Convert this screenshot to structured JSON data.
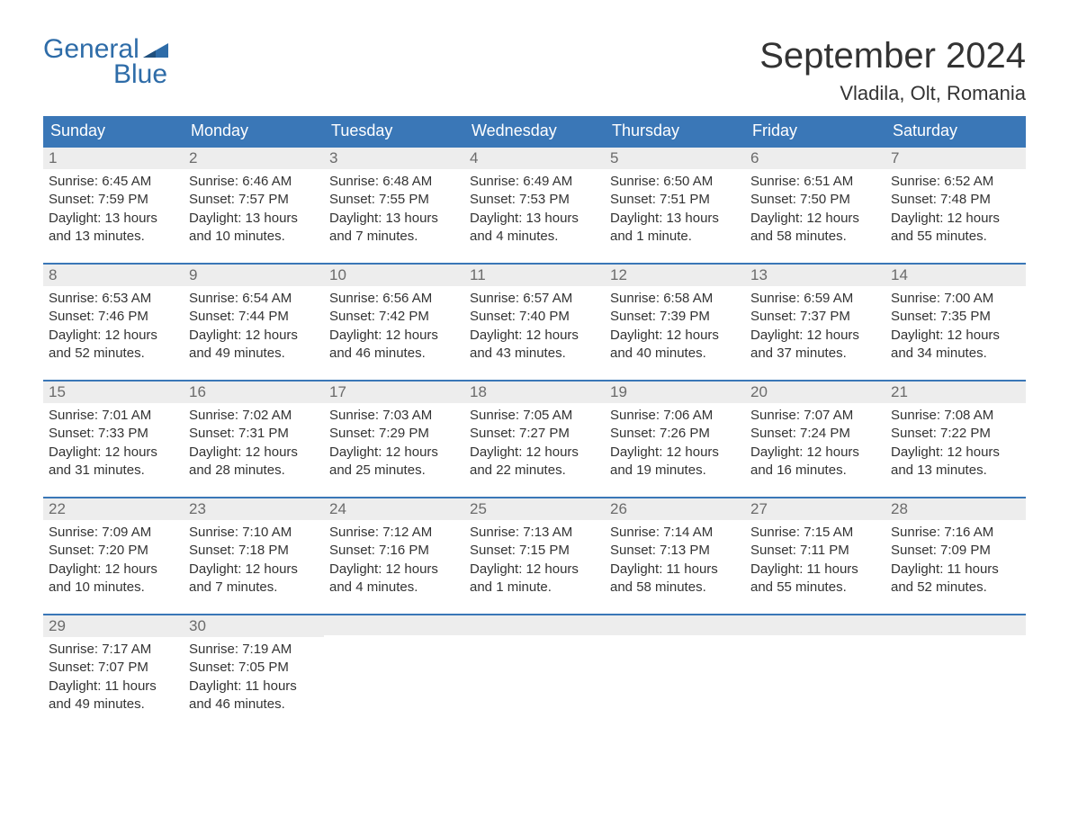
{
  "brand": {
    "name_top": "General",
    "name_bottom": "Blue",
    "brand_color": "#2e6ca8"
  },
  "title": "September 2024",
  "location": "Vladila, Olt, Romania",
  "colors": {
    "header_bg": "#3a77b7",
    "header_text": "#ffffff",
    "daynum_bg": "#ededed",
    "daynum_text": "#6b6b6b",
    "body_text": "#333333",
    "row_border": "#3a77b7",
    "page_bg": "#ffffff"
  },
  "fonts": {
    "month_title_size": 40,
    "location_size": 22,
    "weekday_size": 18,
    "daynum_size": 17,
    "body_size": 15,
    "logo_size": 30
  },
  "weekdays": [
    "Sunday",
    "Monday",
    "Tuesday",
    "Wednesday",
    "Thursday",
    "Friday",
    "Saturday"
  ],
  "weeks": [
    [
      {
        "num": "1",
        "sunrise": "Sunrise: 6:45 AM",
        "sunset": "Sunset: 7:59 PM",
        "daylight1": "Daylight: 13 hours",
        "daylight2": "and 13 minutes."
      },
      {
        "num": "2",
        "sunrise": "Sunrise: 6:46 AM",
        "sunset": "Sunset: 7:57 PM",
        "daylight1": "Daylight: 13 hours",
        "daylight2": "and 10 minutes."
      },
      {
        "num": "3",
        "sunrise": "Sunrise: 6:48 AM",
        "sunset": "Sunset: 7:55 PM",
        "daylight1": "Daylight: 13 hours",
        "daylight2": "and 7 minutes."
      },
      {
        "num": "4",
        "sunrise": "Sunrise: 6:49 AM",
        "sunset": "Sunset: 7:53 PM",
        "daylight1": "Daylight: 13 hours",
        "daylight2": "and 4 minutes."
      },
      {
        "num": "5",
        "sunrise": "Sunrise: 6:50 AM",
        "sunset": "Sunset: 7:51 PM",
        "daylight1": "Daylight: 13 hours",
        "daylight2": "and 1 minute."
      },
      {
        "num": "6",
        "sunrise": "Sunrise: 6:51 AM",
        "sunset": "Sunset: 7:50 PM",
        "daylight1": "Daylight: 12 hours",
        "daylight2": "and 58 minutes."
      },
      {
        "num": "7",
        "sunrise": "Sunrise: 6:52 AM",
        "sunset": "Sunset: 7:48 PM",
        "daylight1": "Daylight: 12 hours",
        "daylight2": "and 55 minutes."
      }
    ],
    [
      {
        "num": "8",
        "sunrise": "Sunrise: 6:53 AM",
        "sunset": "Sunset: 7:46 PM",
        "daylight1": "Daylight: 12 hours",
        "daylight2": "and 52 minutes."
      },
      {
        "num": "9",
        "sunrise": "Sunrise: 6:54 AM",
        "sunset": "Sunset: 7:44 PM",
        "daylight1": "Daylight: 12 hours",
        "daylight2": "and 49 minutes."
      },
      {
        "num": "10",
        "sunrise": "Sunrise: 6:56 AM",
        "sunset": "Sunset: 7:42 PM",
        "daylight1": "Daylight: 12 hours",
        "daylight2": "and 46 minutes."
      },
      {
        "num": "11",
        "sunrise": "Sunrise: 6:57 AM",
        "sunset": "Sunset: 7:40 PM",
        "daylight1": "Daylight: 12 hours",
        "daylight2": "and 43 minutes."
      },
      {
        "num": "12",
        "sunrise": "Sunrise: 6:58 AM",
        "sunset": "Sunset: 7:39 PM",
        "daylight1": "Daylight: 12 hours",
        "daylight2": "and 40 minutes."
      },
      {
        "num": "13",
        "sunrise": "Sunrise: 6:59 AM",
        "sunset": "Sunset: 7:37 PM",
        "daylight1": "Daylight: 12 hours",
        "daylight2": "and 37 minutes."
      },
      {
        "num": "14",
        "sunrise": "Sunrise: 7:00 AM",
        "sunset": "Sunset: 7:35 PM",
        "daylight1": "Daylight: 12 hours",
        "daylight2": "and 34 minutes."
      }
    ],
    [
      {
        "num": "15",
        "sunrise": "Sunrise: 7:01 AM",
        "sunset": "Sunset: 7:33 PM",
        "daylight1": "Daylight: 12 hours",
        "daylight2": "and 31 minutes."
      },
      {
        "num": "16",
        "sunrise": "Sunrise: 7:02 AM",
        "sunset": "Sunset: 7:31 PM",
        "daylight1": "Daylight: 12 hours",
        "daylight2": "and 28 minutes."
      },
      {
        "num": "17",
        "sunrise": "Sunrise: 7:03 AM",
        "sunset": "Sunset: 7:29 PM",
        "daylight1": "Daylight: 12 hours",
        "daylight2": "and 25 minutes."
      },
      {
        "num": "18",
        "sunrise": "Sunrise: 7:05 AM",
        "sunset": "Sunset: 7:27 PM",
        "daylight1": "Daylight: 12 hours",
        "daylight2": "and 22 minutes."
      },
      {
        "num": "19",
        "sunrise": "Sunrise: 7:06 AM",
        "sunset": "Sunset: 7:26 PM",
        "daylight1": "Daylight: 12 hours",
        "daylight2": "and 19 minutes."
      },
      {
        "num": "20",
        "sunrise": "Sunrise: 7:07 AM",
        "sunset": "Sunset: 7:24 PM",
        "daylight1": "Daylight: 12 hours",
        "daylight2": "and 16 minutes."
      },
      {
        "num": "21",
        "sunrise": "Sunrise: 7:08 AM",
        "sunset": "Sunset: 7:22 PM",
        "daylight1": "Daylight: 12 hours",
        "daylight2": "and 13 minutes."
      }
    ],
    [
      {
        "num": "22",
        "sunrise": "Sunrise: 7:09 AM",
        "sunset": "Sunset: 7:20 PM",
        "daylight1": "Daylight: 12 hours",
        "daylight2": "and 10 minutes."
      },
      {
        "num": "23",
        "sunrise": "Sunrise: 7:10 AM",
        "sunset": "Sunset: 7:18 PM",
        "daylight1": "Daylight: 12 hours",
        "daylight2": "and 7 minutes."
      },
      {
        "num": "24",
        "sunrise": "Sunrise: 7:12 AM",
        "sunset": "Sunset: 7:16 PM",
        "daylight1": "Daylight: 12 hours",
        "daylight2": "and 4 minutes."
      },
      {
        "num": "25",
        "sunrise": "Sunrise: 7:13 AM",
        "sunset": "Sunset: 7:15 PM",
        "daylight1": "Daylight: 12 hours",
        "daylight2": "and 1 minute."
      },
      {
        "num": "26",
        "sunrise": "Sunrise: 7:14 AM",
        "sunset": "Sunset: 7:13 PM",
        "daylight1": "Daylight: 11 hours",
        "daylight2": "and 58 minutes."
      },
      {
        "num": "27",
        "sunrise": "Sunrise: 7:15 AM",
        "sunset": "Sunset: 7:11 PM",
        "daylight1": "Daylight: 11 hours",
        "daylight2": "and 55 minutes."
      },
      {
        "num": "28",
        "sunrise": "Sunrise: 7:16 AM",
        "sunset": "Sunset: 7:09 PM",
        "daylight1": "Daylight: 11 hours",
        "daylight2": "and 52 minutes."
      }
    ],
    [
      {
        "num": "29",
        "sunrise": "Sunrise: 7:17 AM",
        "sunset": "Sunset: 7:07 PM",
        "daylight1": "Daylight: 11 hours",
        "daylight2": "and 49 minutes."
      },
      {
        "num": "30",
        "sunrise": "Sunrise: 7:19 AM",
        "sunset": "Sunset: 7:05 PM",
        "daylight1": "Daylight: 11 hours",
        "daylight2": "and 46 minutes."
      },
      {
        "num": "",
        "sunrise": "",
        "sunset": "",
        "daylight1": "",
        "daylight2": ""
      },
      {
        "num": "",
        "sunrise": "",
        "sunset": "",
        "daylight1": "",
        "daylight2": ""
      },
      {
        "num": "",
        "sunrise": "",
        "sunset": "",
        "daylight1": "",
        "daylight2": ""
      },
      {
        "num": "",
        "sunrise": "",
        "sunset": "",
        "daylight1": "",
        "daylight2": ""
      },
      {
        "num": "",
        "sunrise": "",
        "sunset": "",
        "daylight1": "",
        "daylight2": ""
      }
    ]
  ]
}
